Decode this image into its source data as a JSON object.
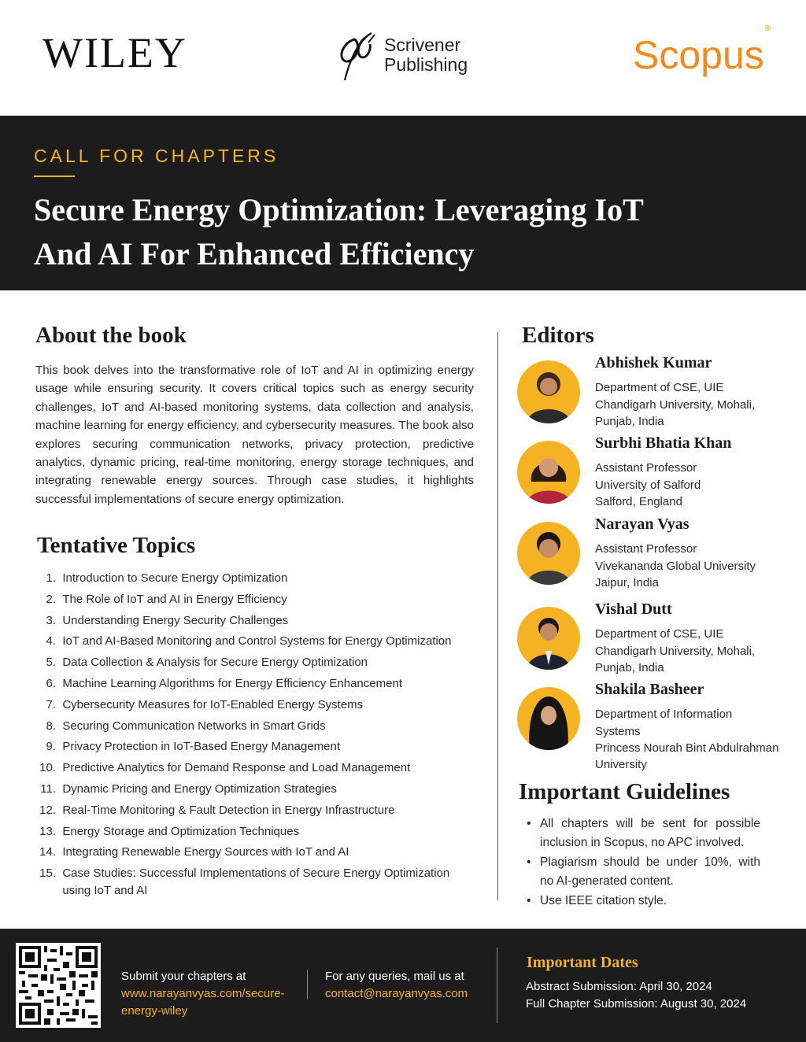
{
  "header": {
    "wiley_logo": "WILEY",
    "scrivener_line1": "Scrivener",
    "scrivener_line2": "Publishing",
    "scopus_logo": "Scopus",
    "scopus_mark": "®"
  },
  "hero": {
    "kicker": "CALL FOR CHAPTERS",
    "title_line1": "Secure Energy Optimization: Leveraging IoT",
    "title_line2": "And AI For Enhanced Efficiency"
  },
  "about": {
    "heading": "About the book",
    "body": "This book delves into the transformative role of IoT and AI in optimizing energy usage while ensuring security. It covers critical topics such as energy security challenges, IoT and AI-based monitoring systems, data collection and analysis, machine learning for energy efficiency, and cybersecurity measures. The book also explores securing communication networks, privacy protection, predictive analytics, dynamic pricing, real-time monitoring, energy storage techniques, and integrating renewable energy sources. Through case studies, it highlights successful implementations of secure energy optimization."
  },
  "topics": {
    "heading": "Tentative Topics",
    "items": [
      {
        "num": "1.",
        "text": "Introduction to Secure Energy Optimization"
      },
      {
        "num": "2.",
        "text": "The Role of IoT and AI in Energy Efficiency"
      },
      {
        "num": "3.",
        "text": "Understanding Energy Security Challenges"
      },
      {
        "num": "4.",
        "text": "IoT and AI-Based Monitoring and Control Systems for Energy Optimization"
      },
      {
        "num": "5.",
        "text": "Data Collection & Analysis for Secure Energy Optimization"
      },
      {
        "num": "6.",
        "text": "Machine Learning Algorithms for Energy Efficiency Enhancement"
      },
      {
        "num": "7.",
        "text": "Cybersecurity Measures for IoT-Enabled Energy Systems"
      },
      {
        "num": "8.",
        "text": "Securing Communication Networks in Smart Grids"
      },
      {
        "num": "9.",
        "text": "Privacy Protection in IoT-Based Energy Management"
      },
      {
        "num": "10.",
        "text": "Predictive Analytics for Demand Response and Load Management"
      },
      {
        "num": "11.",
        "text": "Dynamic Pricing and Energy Optimization Strategies"
      },
      {
        "num": "12.",
        "text": "Real-Time Monitoring & Fault Detection in Energy Infrastructure"
      },
      {
        "num": "13.",
        "text": "Energy Storage and Optimization Techniques"
      },
      {
        "num": "14.",
        "text": "Integrating Renewable Energy Sources with IoT and AI"
      },
      {
        "num": "15.",
        "text": "Case Studies: Successful Implementations of Secure Energy Optimization using IoT and AI"
      }
    ]
  },
  "editors": {
    "heading": "Editors",
    "list": [
      {
        "name": "Abhishek Kumar",
        "lines": [
          "Department of CSE, UIE",
          "Chandigarh University, Mohali,",
          "Punjab, India"
        ]
      },
      {
        "name": "Surbhi Bhatia Khan",
        "lines": [
          "Assistant Professor",
          "University of Salford",
          "Salford, England"
        ]
      },
      {
        "name": "Narayan Vyas",
        "lines": [
          "Assistant Professor",
          "Vivekananda Global University",
          "Jaipur, India"
        ]
      },
      {
        "name": "Vishal Dutt",
        "lines": [
          "Department of CSE, UIE",
          "Chandigarh University, Mohali,",
          "Punjab, India"
        ]
      },
      {
        "name": "Shakila Basheer",
        "lines": [
          "Department of Information",
          "Systems",
          "Princess Nourah Bint Abdulrahman",
          "University"
        ]
      }
    ]
  },
  "guidelines": {
    "heading": "Important Guidelines",
    "items": [
      "All chapters will be sent for possible inclusion in Scopus, no APC involved.",
      "Plagiarism should be under 10%, with no AI-generated content.",
      "Use IEEE citation style."
    ]
  },
  "footer": {
    "submit_label": "Submit your chapters at",
    "submit_url_line1": "www.narayanvyas.com/secure-",
    "submit_url_line2": "energy-wiley",
    "query_label": "For any queries, mail us at",
    "query_email": "contact@narayanvyas.com",
    "dates_heading": "Important Dates",
    "abstract_date": "Abstract Submission: April 30, 2024",
    "chapter_date": "Full Chapter Submission: August 30, 2024"
  },
  "colors": {
    "accent": "#f5b323",
    "scopus_orange": "#f28a1c",
    "dark": "#1c1c1c"
  }
}
